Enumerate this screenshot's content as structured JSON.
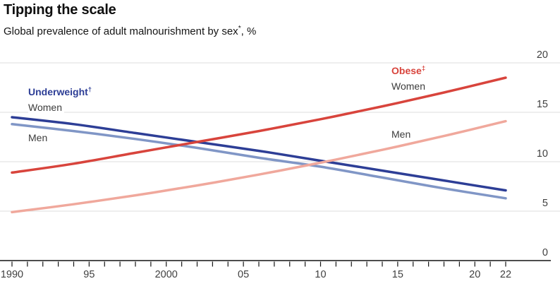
{
  "header": {
    "title": "Tipping the scale",
    "subtitle_text": "Global prevalence of adult malnourishment by sex",
    "subtitle_sup": "*",
    "subtitle_unit": ", %"
  },
  "annotations": {
    "underweight": {
      "text": "Underweight",
      "sup": "†",
      "women": "Women",
      "men": "Men"
    },
    "obese": {
      "text": "Obese",
      "sup": "‡",
      "women": "Women",
      "men": "Men"
    }
  },
  "chart_data": {
    "type": "line",
    "title": "Tipping the scale",
    "subtitle": "Global prevalence of adult malnourishment by sex*, %",
    "xlabel": "",
    "ylabel": "%",
    "x_years": [
      1990,
      1994,
      1998,
      2002,
      2006,
      2010,
      2014,
      2018,
      2022
    ],
    "series": [
      {
        "name": "Underweight women",
        "color": "#2d3e96",
        "values": [
          14.5,
          13.8,
          12.9,
          12.0,
          11.1,
          10.1,
          9.1,
          8.1,
          7.1
        ]
      },
      {
        "name": "Underweight men",
        "color": "#8096c6",
        "values": [
          13.8,
          13.1,
          12.3,
          11.4,
          10.4,
          9.5,
          8.4,
          7.3,
          6.3
        ]
      },
      {
        "name": "Obese women",
        "color": "#d8443c",
        "values": [
          8.9,
          9.8,
          10.9,
          12.0,
          13.1,
          14.3,
          15.6,
          17.0,
          18.5
        ]
      },
      {
        "name": "Obese men",
        "color": "#f0a89c",
        "values": [
          4.9,
          5.7,
          6.6,
          7.6,
          8.7,
          9.9,
          11.2,
          12.6,
          14.1
        ]
      }
    ],
    "ylim": [
      0,
      20
    ],
    "y_ticks": [
      {
        "value": 0,
        "label": "0"
      },
      {
        "value": 5,
        "label": "5"
      },
      {
        "value": 10,
        "label": "10"
      },
      {
        "value": 15,
        "label": "15"
      },
      {
        "value": 20,
        "label": "20"
      }
    ],
    "x_minor_tick_start": 1990,
    "x_minor_tick_end": 2022,
    "x_minor_tick_step": 1,
    "x_labeled_ticks": [
      {
        "year": 1990,
        "label": "1990"
      },
      {
        "year": 1995,
        "label": "95"
      },
      {
        "year": 2000,
        "label": "2000"
      },
      {
        "year": 2005,
        "label": "05"
      },
      {
        "year": 2010,
        "label": "10"
      },
      {
        "year": 2015,
        "label": "15"
      },
      {
        "year": 2020,
        "label": "20"
      },
      {
        "year": 2022,
        "label": "22"
      }
    ],
    "grid": "horizontal",
    "legend_position": "inline-annotations",
    "colors": {
      "grid": "#dcdcdc",
      "axis": "#141414",
      "tick": "#141414",
      "tick_label": "#404040"
    }
  }
}
